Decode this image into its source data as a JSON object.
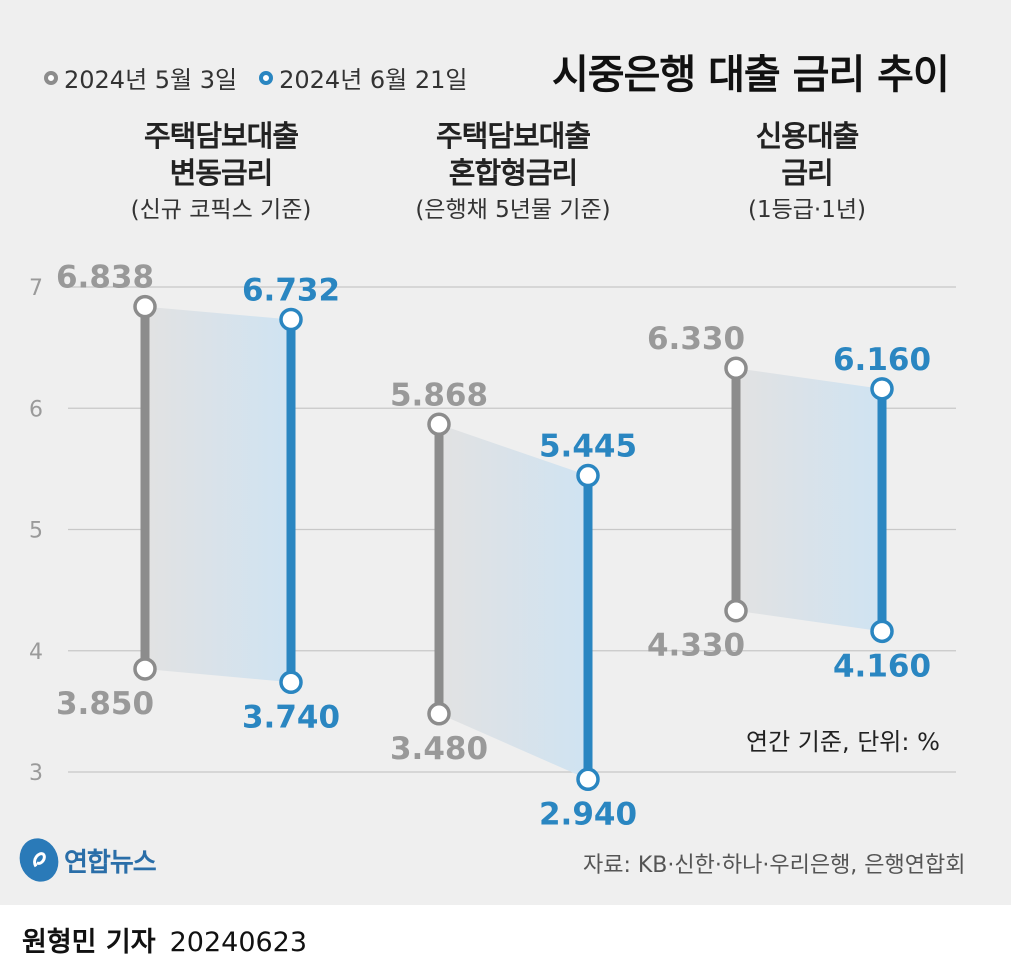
{
  "title": "시중은행 대출 금리 추이",
  "legend": [
    {
      "label": "2024년 5월 3일",
      "color": "#8c8c8c"
    },
    {
      "label": "2024년 6월 21일",
      "color": "#2a86c1"
    }
  ],
  "groups": [
    {
      "title_line1": "주택담보대출",
      "title_line2": "변동금리",
      "subtitle": "(신규 코픽스 기준)"
    },
    {
      "title_line1": "주택담보대출",
      "title_line2": "혼합형금리",
      "subtitle": "(은행채 5년물 기준)"
    },
    {
      "title_line1": "신용대출",
      "title_line2": "금리",
      "subtitle": "(1등급·1년)"
    }
  ],
  "unit_note": "연간 기준, 단위: %",
  "source": "자료: KB·신한·하나·우리은행, 은행연합회",
  "logo_text": "연합뉴스",
  "byline": {
    "name": "원형민 기자",
    "date": "20240623"
  },
  "colors": {
    "gray": "#8c8c8c",
    "blue": "#2a86c1",
    "band": "#cfe3f2",
    "grid": "#c8c8c8"
  },
  "chart_data": {
    "type": "range",
    "title": "시중은행 대출 금리 추이",
    "categories": [
      "주택담보대출 변동금리",
      "주택담보대출 혼합형금리",
      "신용대출 금리"
    ],
    "y_ticks": [
      3,
      4,
      5,
      6,
      7
    ],
    "ylim": [
      3,
      7
    ],
    "grid": true,
    "legend_position": "top-left",
    "series": [
      {
        "name": "2024년 5월 3일",
        "color": "#8c8c8c",
        "ranges": [
          {
            "high": 6.838,
            "low": 3.85,
            "high_label": "6.838",
            "low_label": "3.850"
          },
          {
            "high": 5.868,
            "low": 3.48,
            "high_label": "5.868",
            "low_label": "3.480"
          },
          {
            "high": 6.33,
            "low": 4.33,
            "high_label": "6.330",
            "low_label": "4.330"
          }
        ]
      },
      {
        "name": "2024년 6월 21일",
        "color": "#2a86c1",
        "ranges": [
          {
            "high": 6.732,
            "low": 3.74,
            "high_label": "6.732",
            "low_label": "3.740"
          },
          {
            "high": 5.445,
            "low": 2.94,
            "high_label": "5.445",
            "low_label": "2.940"
          },
          {
            "high": 6.16,
            "low": 4.16,
            "high_label": "6.160",
            "low_label": "4.160"
          }
        ]
      }
    ]
  }
}
